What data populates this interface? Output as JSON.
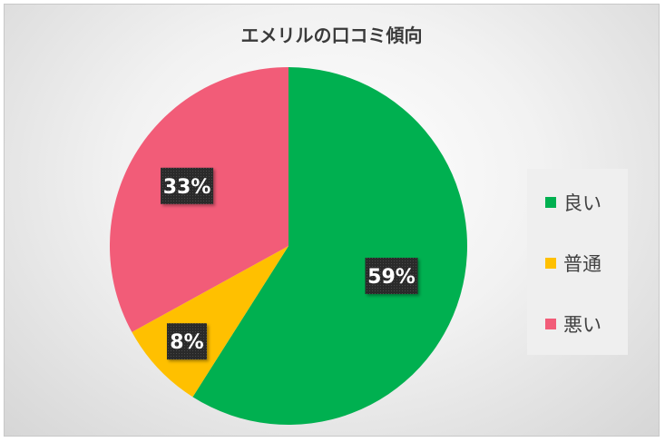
{
  "chart_data": {
    "type": "pie",
    "title": "エメリルの口コミ傾向",
    "categories": [
      "良い",
      "普通",
      "悪い"
    ],
    "values": [
      59,
      8,
      33
    ],
    "data_labels": [
      "59%",
      "8%",
      "33%"
    ],
    "colors": [
      "#00b050",
      "#ffc000",
      "#f25c78"
    ],
    "legend_position": "right",
    "start_angle_deg": 0,
    "direction": "clockwise"
  }
}
